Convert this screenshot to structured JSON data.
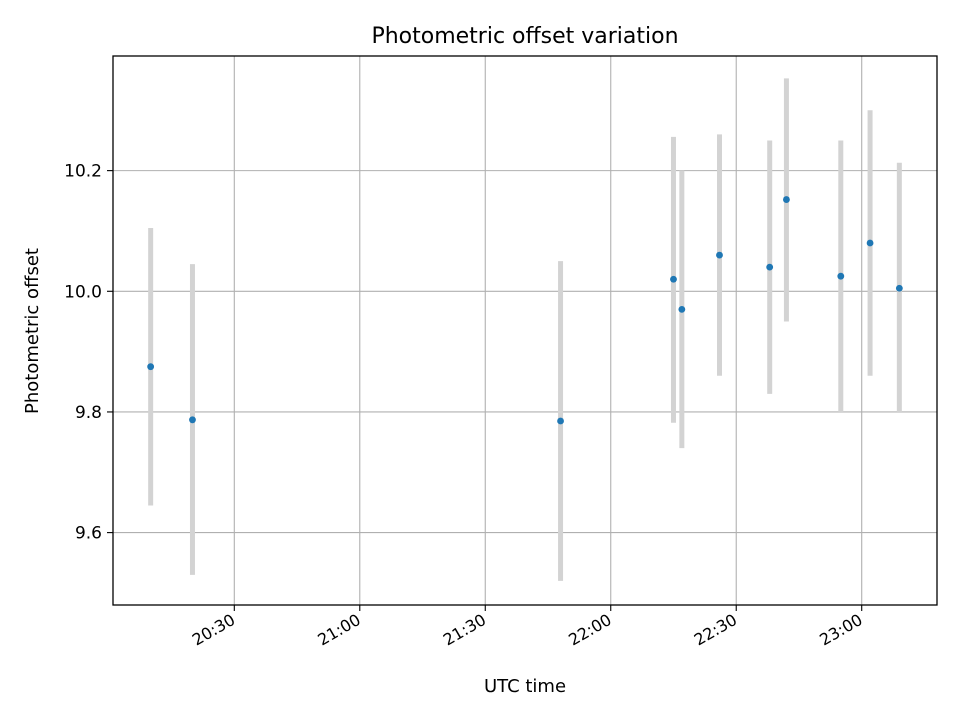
{
  "chart_data": {
    "type": "scatter",
    "title": "Photometric offset variation",
    "xlabel": "UTC time",
    "ylabel": "Photometric offset",
    "x_ticks": [
      "20:30",
      "21:00",
      "21:30",
      "22:00",
      "22:30",
      "23:00"
    ],
    "y_ticks": [
      "9.6",
      "9.8",
      "10.0",
      "10.2"
    ],
    "xlim": [
      "20:01",
      "23:18"
    ],
    "ylim": [
      9.48,
      10.39
    ],
    "grid": true,
    "point_color": "#1f77b4",
    "errorbar_color": "#d3d3d3",
    "points": [
      {
        "x": "20:10",
        "y": 9.875,
        "err_low": 9.645,
        "err_high": 10.105
      },
      {
        "x": "20:20",
        "y": 9.787,
        "err_low": 9.53,
        "err_high": 10.045
      },
      {
        "x": "21:48",
        "y": 9.785,
        "err_low": 9.52,
        "err_high": 10.05
      },
      {
        "x": "22:15",
        "y": 10.02,
        "err_low": 9.782,
        "err_high": 10.256
      },
      {
        "x": "22:17",
        "y": 9.97,
        "err_low": 9.74,
        "err_high": 10.2
      },
      {
        "x": "22:26",
        "y": 10.06,
        "err_low": 9.86,
        "err_high": 10.26
      },
      {
        "x": "22:38",
        "y": 10.04,
        "err_low": 9.83,
        "err_high": 10.25
      },
      {
        "x": "22:42",
        "y": 10.152,
        "err_low": 9.95,
        "err_high": 10.353
      },
      {
        "x": "22:55",
        "y": 10.025,
        "err_low": 9.8,
        "err_high": 10.25
      },
      {
        "x": "23:02",
        "y": 10.08,
        "err_low": 9.86,
        "err_high": 10.3
      },
      {
        "x": "23:09",
        "y": 10.005,
        "err_low": 9.8,
        "err_high": 10.213
      }
    ]
  }
}
